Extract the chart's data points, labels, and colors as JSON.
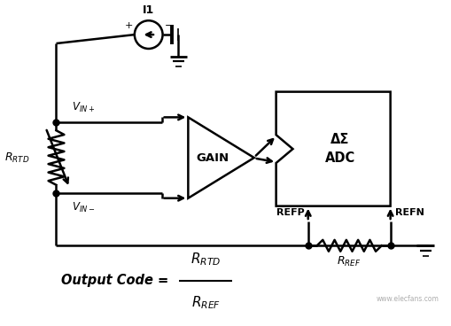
{
  "bg_color": "#ffffff",
  "line_color": "#000000",
  "fig_width": 5.1,
  "fig_height": 3.68,
  "dpi": 100,
  "gain_label": "GAIN",
  "adc_label": "ΔΣ\nADC",
  "refp_label": "REFP",
  "refn_label": "REFN",
  "i1_label": "I1",
  "vin_plus_label": "V_{IN+}",
  "vin_minus_label": "V_{IN-}",
  "rtd_label": "R_{RTD}",
  "rref_label": "R_{REF}",
  "formula_text": "Output Code",
  "formula_num": "R_{RTD}",
  "formula_den": "R_{REF}",
  "watermark": "www.elecfans.com"
}
